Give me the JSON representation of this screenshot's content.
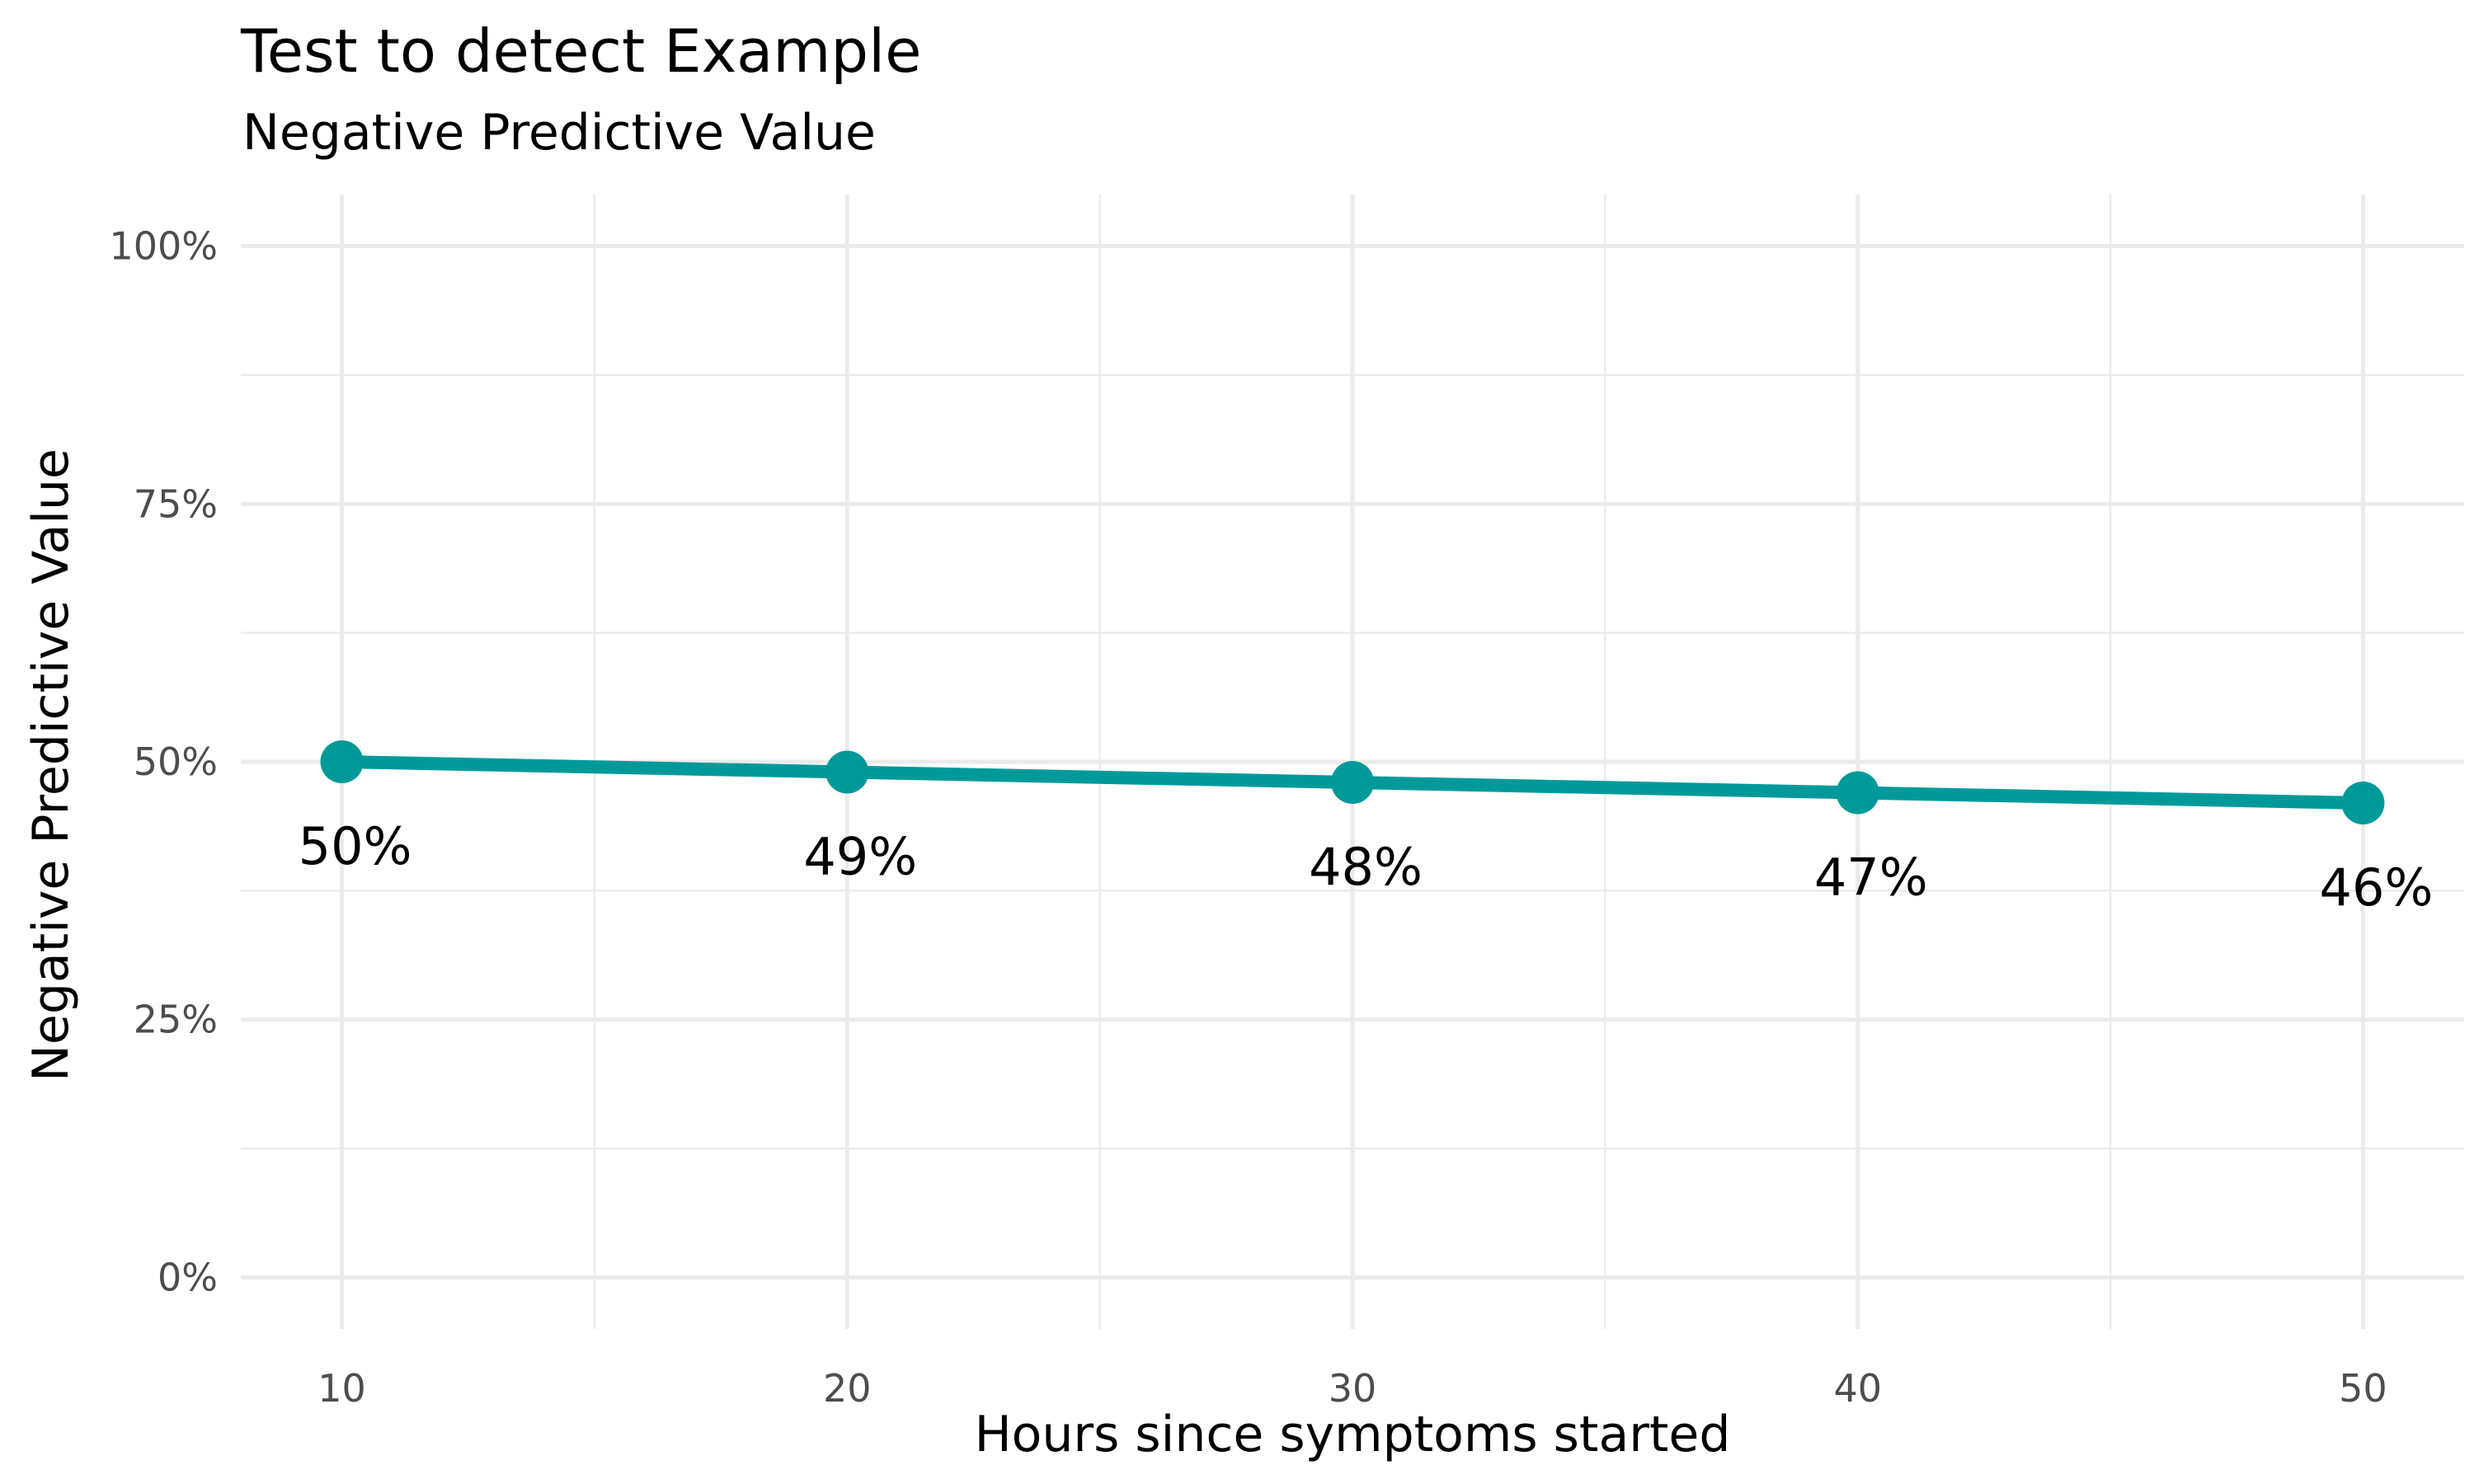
{
  "chart_data": {
    "type": "line",
    "title": "Test to detect Example",
    "subtitle": "Negative Predictive Value",
    "xlabel": "Hours since symptoms started",
    "ylabel": "Negative Predictive Value",
    "x": [
      10,
      20,
      30,
      40,
      50
    ],
    "series": [
      {
        "values": [
          0.5,
          0.49,
          0.48,
          0.47,
          0.46
        ]
      }
    ],
    "data_labels": [
      "50%",
      "49%",
      "48%",
      "47%",
      "46%"
    ],
    "xlim": [
      8,
      52
    ],
    "ylim": [
      -0.05,
      1.05
    ],
    "x_ticks": [
      10,
      20,
      30,
      40,
      50
    ],
    "x_tick_labels": [
      "10",
      "20",
      "30",
      "40",
      "50"
    ],
    "y_ticks": [
      0,
      0.25,
      0.5,
      0.75,
      1.0
    ],
    "y_tick_labels": [
      "0%",
      "25%",
      "50%",
      "75%",
      "100%"
    ],
    "grid": true,
    "legend": "none",
    "colors": {
      "line": "#009999",
      "grid": "#ebebeb"
    }
  }
}
